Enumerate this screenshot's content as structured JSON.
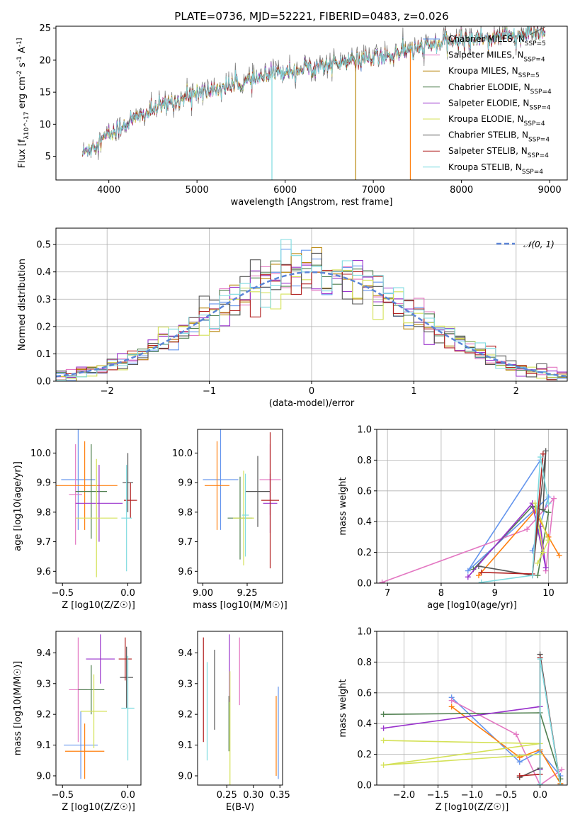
{
  "title": "PLATE=0736, MJD=52221, FIBERID=0483, z=0.026",
  "colors": {
    "Chabrier MILES": "#6495ed",
    "Salpeter MILES": "#e377c2",
    "Kroupa MILES": "#b8860b",
    "Chabrier ELODIE": "#4f7f4f",
    "Salpeter ELODIE": "#9932cc",
    "Kroupa ELODIE": "#d4e157",
    "Chabrier STELIB": "#555555",
    "Salpeter STELIB": "#b22222",
    "Kroupa STELIB": "#7fdbe0",
    "extra": "#ff7f0e"
  },
  "chart_data": [
    {
      "id": "spectrum",
      "type": "line",
      "xlabel": "wavelength [Angstrom, rest frame]",
      "ylabel": "Flux [f_λ10^-17 erg cm^-2 s^-1 A^-1]",
      "xlim": [
        3400,
        9200
      ],
      "ylim": [
        1.3,
        25.3
      ],
      "xticks": [
        4000,
        5000,
        6000,
        7000,
        8000,
        9000
      ],
      "yticks": [
        5,
        10,
        15,
        20,
        25
      ],
      "legend_position": "top-right",
      "legend": [
        {
          "label": "Chabrier MILES, N_SSP=5",
          "color": "Chabrier MILES"
        },
        {
          "label": "Salpeter MILES, N_SSP=4",
          "color": "Salpeter MILES"
        },
        {
          "label": "Kroupa MILES, N_SSP=5",
          "color": "Kroupa MILES"
        },
        {
          "label": "Chabrier ELODIE, N_SSP=4",
          "color": "Chabrier ELODIE"
        },
        {
          "label": "Salpeter ELODIE, N_SSP=4",
          "color": "Salpeter ELODIE"
        },
        {
          "label": "Kroupa ELODIE, N_SSP=4",
          "color": "Kroupa ELODIE"
        },
        {
          "label": "Chabrier STELIB, N_SSP=4",
          "color": "Chabrier STELIB"
        },
        {
          "label": "Salpeter STELIB, N_SSP=4",
          "color": "Salpeter STELIB"
        },
        {
          "label": "Kroupa STELIB, N_SSP=4",
          "color": "Kroupa STELIB"
        }
      ],
      "continuum": {
        "x": [
          3700,
          3850,
          4000,
          4300,
          4700,
          5000,
          5500,
          6000,
          6500,
          7000,
          7500,
          8000,
          8500,
          8900
        ],
        "y": [
          5.5,
          7.0,
          8.5,
          11.0,
          13.5,
          15.0,
          16.5,
          18.5,
          19.5,
          20.5,
          22.0,
          23.5,
          24.0,
          24.5
        ]
      },
      "x_range": [
        3700,
        8950
      ]
    },
    {
      "id": "residuals",
      "type": "histogram",
      "xlabel": "(data-model)/error",
      "ylabel": "Normed distribution",
      "xlim": [
        -2.5,
        2.5
      ],
      "ylim": [
        0,
        0.56
      ],
      "xticks": [
        -2,
        -1,
        0,
        1,
        2
      ],
      "yticks": [
        0.0,
        0.1,
        0.2,
        0.3,
        0.4,
        0.5
      ],
      "bin_width": 0.1,
      "grid": true,
      "legend_position": "top-right",
      "legend": [
        "N(0,1)"
      ],
      "normal_curve": {
        "mean": 0,
        "sigma": 1,
        "color": "#5b84d6"
      }
    },
    {
      "id": "age-vs-Z",
      "type": "scatter",
      "xlabel": "Z [log10(Z/Z☉)]",
      "ylabel": "age  [log10(age/yr)]",
      "xlim": [
        -0.55,
        0.1
      ],
      "ylim": [
        9.56,
        10.08
      ],
      "xticks": [
        -0.5,
        0.0
      ],
      "yticks": [
        9.6,
        9.7,
        9.8,
        9.9,
        10.0
      ],
      "points": [
        {
          "c": "Chabrier MILES",
          "x": -0.38,
          "y": 9.91,
          "xe": 0.13,
          "ye": 0.17
        },
        {
          "c": "Salpeter MILES",
          "x": -0.4,
          "y": 9.86,
          "xe": 0.05,
          "ye": 0.17
        },
        {
          "c": "extra",
          "x": -0.33,
          "y": 9.89,
          "xe": 0.25,
          "ye": 0.15
        },
        {
          "c": "Chabrier ELODIE",
          "x": -0.28,
          "y": 9.87,
          "xe": 0.12,
          "ye": 0.16
        },
        {
          "c": "Salpeter ELODIE",
          "x": -0.22,
          "y": 9.83,
          "xe": 0.18,
          "ye": 0.13
        },
        {
          "c": "Kroupa ELODIE",
          "x": -0.24,
          "y": 9.78,
          "xe": 0.16,
          "ye": 0.2
        },
        {
          "c": "Chabrier STELIB",
          "x": 0.0,
          "y": 9.9,
          "xe": 0.04,
          "ye": 0.1
        },
        {
          "c": "Salpeter STELIB",
          "x": 0.02,
          "y": 9.84,
          "xe": 0.05,
          "ye": 0.06
        },
        {
          "c": "Kroupa STELIB",
          "x": -0.01,
          "y": 9.78,
          "xe": 0.04,
          "ye": 0.18
        }
      ]
    },
    {
      "id": "age-vs-mass",
      "type": "scatter",
      "xlabel": "mass [log10(M/M☉)]",
      "ylabel": "",
      "xlim": [
        8.97,
        9.45
      ],
      "ylim": [
        9.56,
        10.08
      ],
      "xticks": [
        9.0,
        9.25
      ],
      "yticks": [
        9.6,
        9.7,
        9.8,
        9.9,
        10.0
      ],
      "points": [
        {
          "c": "Chabrier MILES",
          "x": 9.1,
          "y": 9.91,
          "xe": 0.1,
          "ye": 0.17
        },
        {
          "c": "Salpeter MILES",
          "x": 9.38,
          "y": 9.91,
          "xe": 0.06,
          "ye": 0.12
        },
        {
          "c": "extra",
          "x": 9.08,
          "y": 9.89,
          "xe": 0.07,
          "ye": 0.15
        },
        {
          "c": "Chabrier ELODIE",
          "x": 9.21,
          "y": 9.78,
          "xe": 0.07,
          "ye": 0.14
        },
        {
          "c": "Salpeter ELODIE",
          "x": 9.38,
          "y": 9.83,
          "xe": 0.04,
          "ye": 0.1
        },
        {
          "c": "Kroupa ELODIE",
          "x": 9.23,
          "y": 9.78,
          "xe": 0.06,
          "ye": 0.16
        },
        {
          "c": "Chabrier STELIB",
          "x": 9.31,
          "y": 9.87,
          "xe": 0.07,
          "ye": 0.12
        },
        {
          "c": "Salpeter STELIB",
          "x": 9.38,
          "y": 9.84,
          "xe": 0.05,
          "ye": 0.23
        },
        {
          "c": "Kroupa STELIB",
          "x": 9.24,
          "y": 9.79,
          "xe": 0.02,
          "ye": 0.14
        }
      ]
    },
    {
      "id": "mass-weight-vs-age",
      "type": "line",
      "xlabel": "age  [log10(age/yr)]",
      "ylabel": "mass weight",
      "xlim": [
        6.8,
        10.35
      ],
      "ylim": [
        0.0,
        1.0
      ],
      "xticks": [
        7,
        8,
        9,
        10
      ],
      "yticks": [
        0.0,
        0.2,
        0.4,
        0.6,
        0.8,
        1.0
      ],
      "grid": true,
      "series": [
        {
          "c": "Chabrier MILES",
          "x": [
            9.7,
            10.0,
            8.5,
            9.85
          ],
          "y": [
            0.21,
            0.56,
            0.08,
            0.8
          ]
        },
        {
          "c": "Salpeter MILES",
          "x": [
            6.9,
            9.6,
            10.1,
            9.95
          ],
          "y": [
            0.005,
            0.35,
            0.55,
            0.08
          ]
        },
        {
          "c": "extra",
          "x": [
            8.7,
            9.75,
            10.0,
            10.2
          ],
          "y": [
            0.05,
            0.47,
            0.3,
            0.18
          ]
        },
        {
          "c": "Chabrier ELODIE",
          "x": [
            8.6,
            9.7,
            10.0,
            9.8
          ],
          "y": [
            0.09,
            0.5,
            0.46,
            0.05
          ]
        },
        {
          "c": "Salpeter ELODIE",
          "x": [
            8.5,
            9.7,
            9.95,
            9.85
          ],
          "y": [
            0.04,
            0.52,
            0.1,
            0.37
          ]
        },
        {
          "c": "Kroupa ELODIE",
          "x": [
            9.8,
            10.0,
            9.75,
            9.9
          ],
          "y": [
            0.13,
            0.28,
            0.52,
            0.2
          ]
        },
        {
          "c": "Chabrier STELIB",
          "x": [
            8.7,
            9.7,
            9.95,
            9.9
          ],
          "y": [
            0.11,
            0.05,
            0.86,
            0.48
          ]
        },
        {
          "c": "Salpeter STELIB",
          "x": [
            8.75,
            9.7,
            9.9
          ],
          "y": [
            0.07,
            0.06,
            0.84
          ]
        },
        {
          "c": "Kroupa STELIB",
          "x": [
            8.75,
            9.7,
            9.85,
            10.0
          ],
          "y": [
            0.005,
            0.05,
            0.82,
            0.52
          ]
        }
      ]
    },
    {
      "id": "mass-vs-Z",
      "type": "scatter",
      "xlabel": "Z [log10(Z/Z☉)]",
      "ylabel": "mass [log10(M/M☉)]",
      "xlim": [
        -0.55,
        0.1
      ],
      "ylim": [
        8.97,
        9.47
      ],
      "xticks": [
        -0.5,
        0.0
      ],
      "yticks": [
        9.0,
        9.1,
        9.2,
        9.3,
        9.4
      ],
      "points": [
        {
          "c": "Chabrier MILES",
          "x": -0.36,
          "y": 9.1,
          "xe": 0.13,
          "ye": 0.11
        },
        {
          "c": "Salpeter MILES",
          "x": -0.38,
          "y": 9.28,
          "xe": 0.07,
          "ye": 0.17
        },
        {
          "c": "extra",
          "x": -0.33,
          "y": 9.08,
          "xe": 0.15,
          "ye": 0.09
        },
        {
          "c": "Chabrier ELODIE",
          "x": -0.28,
          "y": 9.28,
          "xe": 0.1,
          "ye": 0.08
        },
        {
          "c": "Salpeter ELODIE",
          "x": -0.21,
          "y": 9.38,
          "xe": 0.11,
          "ye": 0.08
        },
        {
          "c": "Kroupa ELODIE",
          "x": -0.26,
          "y": 9.21,
          "xe": 0.1,
          "ye": 0.12
        },
        {
          "c": "Chabrier STELIB",
          "x": -0.01,
          "y": 9.32,
          "xe": 0.05,
          "ye": 0.1
        },
        {
          "c": "Salpeter STELIB",
          "x": -0.02,
          "y": 9.38,
          "xe": 0.05,
          "ye": 0.07
        },
        {
          "c": "Kroupa STELIB",
          "x": 0.0,
          "y": 9.22,
          "xe": 0.05,
          "ye": 0.17
        }
      ]
    },
    {
      "id": "mass-vs-EBV",
      "type": "scatter",
      "xlabel": "E(B-V)",
      "ylabel": "",
      "xlim": [
        0.195,
        0.355
      ],
      "ylim": [
        8.97,
        9.47
      ],
      "xticks": [
        0.25,
        0.3,
        0.35
      ],
      "yticks": [
        9.0,
        9.1,
        9.2,
        9.3,
        9.4
      ],
      "points": [
        {
          "c": "Chabrier MILES",
          "x": 0.347,
          "y": 9.14,
          "xe": 0,
          "ye": 0.15
        },
        {
          "c": "Salpeter MILES",
          "x": 0.274,
          "y": 9.34,
          "xe": 0,
          "ye": 0.11
        },
        {
          "c": "extra",
          "x": 0.343,
          "y": 9.13,
          "xe": 0,
          "ye": 0.13
        },
        {
          "c": "Chabrier ELODIE",
          "x": 0.254,
          "y": 9.17,
          "xe": 0,
          "ye": 0.09
        },
        {
          "c": "Salpeter ELODIE",
          "x": 0.255,
          "y": 9.35,
          "xe": 0,
          "ye": 0.11
        },
        {
          "c": "Kroupa ELODIE",
          "x": 0.256,
          "y": 9.14,
          "xe": 0,
          "ye": 0.2
        },
        {
          "c": "Chabrier STELIB",
          "x": 0.227,
          "y": 9.28,
          "xe": 0,
          "ye": 0.13
        },
        {
          "c": "Salpeter STELIB",
          "x": 0.206,
          "y": 9.28,
          "xe": 0,
          "ye": 0.17
        },
        {
          "c": "Kroupa STELIB",
          "x": 0.213,
          "y": 9.21,
          "xe": 0,
          "ye": 0.16
        }
      ]
    },
    {
      "id": "mass-weight-vs-Z",
      "type": "line",
      "xlabel": "Z [log10(Z/Z☉)]",
      "ylabel": "mass weight",
      "xlim": [
        -2.4,
        0.4
      ],
      "ylim": [
        0.0,
        1.0
      ],
      "xticks": [
        -2.0,
        -1.5,
        -1.0,
        -0.5,
        0.0
      ],
      "yticks": [
        0.0,
        0.2,
        0.4,
        0.6,
        0.8,
        1.0
      ],
      "grid": true,
      "series": [
        {
          "c": "Chabrier MILES",
          "x": [
            -1.3,
            -0.3,
            0.0,
            0.3
          ],
          "y": [
            0.57,
            0.15,
            0.22,
            0.06
          ]
        },
        {
          "c": "Salpeter MILES",
          "x": [
            -1.3,
            -0.35,
            0.0,
            0.32
          ],
          "y": [
            0.55,
            0.33,
            0.0,
            0.1
          ]
        },
        {
          "c": "extra",
          "x": [
            -1.3,
            -0.3,
            0.0,
            0.3
          ],
          "y": [
            0.51,
            0.18,
            0.23,
            0.01
          ]
        },
        {
          "c": "Chabrier ELODIE",
          "x": [
            -2.3,
            0.0,
            0.3
          ],
          "y": [
            0.46,
            0.47,
            0.04
          ]
        },
        {
          "c": "Salpeter ELODIE",
          "x": [
            -2.3,
            0.0,
            0.0
          ],
          "y": [
            0.37,
            0.51,
            0.1
          ]
        },
        {
          "c": "Kroupa ELODIE",
          "x": [
            -2.3,
            0.0,
            -2.3,
            0.0
          ],
          "y": [
            0.29,
            0.27,
            0.13,
            0.2
          ]
        },
        {
          "c": "Chabrier STELIB",
          "x": [
            -0.3,
            0.0,
            0.0,
            0.3
          ],
          "y": [
            0.05,
            0.11,
            0.85,
            0.0
          ]
        },
        {
          "c": "Salpeter STELIB",
          "x": [
            -0.3,
            0.0,
            0.0,
            0.3
          ],
          "y": [
            0.06,
            0.07,
            0.83,
            0.0
          ]
        },
        {
          "c": "Kroupa STELIB",
          "x": [
            0.0,
            0.0,
            0.3
          ],
          "y": [
            0.005,
            0.82,
            0.0
          ]
        }
      ]
    }
  ]
}
